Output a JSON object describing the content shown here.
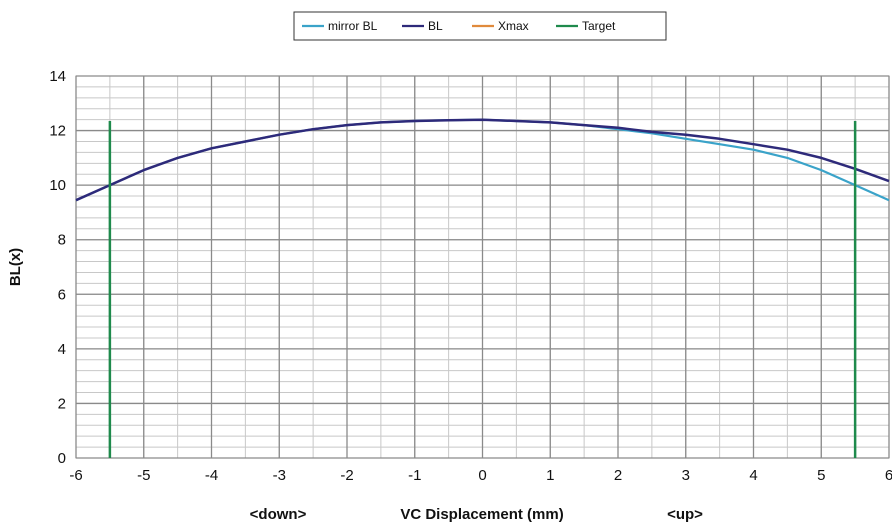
{
  "chart_data": {
    "type": "line",
    "title": "",
    "xlabel": "VC Displacement (mm)",
    "xlabel_left_note": "<down>",
    "xlabel_right_note": "<up>",
    "ylabel": "BL(x)",
    "xlim": [
      -6,
      6
    ],
    "ylim": [
      0,
      14
    ],
    "x_ticks": [
      -6,
      -5,
      -4,
      -3,
      -2,
      -1,
      0,
      1,
      2,
      3,
      4,
      5,
      6
    ],
    "y_ticks": [
      0,
      2,
      4,
      6,
      8,
      10,
      12,
      14
    ],
    "grid": true,
    "legend_position": "top",
    "legend": [
      "mirror BL",
      "BL",
      "Xmax",
      "Target"
    ],
    "series": [
      {
        "name": "mirror BL",
        "color": "#3aa3c9",
        "x": [
          -6,
          -5.5,
          -5,
          -4.5,
          -4,
          -3.5,
          -3,
          -2.5,
          -2,
          -1.5,
          -1,
          -0.5,
          0,
          0.5,
          1,
          1.5,
          2,
          2.5,
          3,
          3.5,
          4,
          4.5,
          5,
          5.5,
          6
        ],
        "y": [
          9.45,
          10.0,
          10.55,
          11.0,
          11.35,
          11.6,
          11.85,
          12.05,
          12.2,
          12.3,
          12.35,
          12.38,
          12.4,
          12.35,
          12.3,
          12.2,
          12.05,
          11.9,
          11.7,
          11.5,
          11.3,
          11.0,
          10.55,
          10.0,
          9.45
        ]
      },
      {
        "name": "BL",
        "color": "#2e2a7a",
        "x": [
          -6,
          -5.5,
          -5,
          -4.5,
          -4,
          -3.5,
          -3,
          -2.5,
          -2,
          -1.5,
          -1,
          -0.5,
          0,
          0.5,
          1,
          1.5,
          2,
          2.5,
          3,
          3.5,
          4,
          4.5,
          5,
          5.5,
          6
        ],
        "y": [
          9.45,
          10.0,
          10.55,
          11.0,
          11.35,
          11.6,
          11.85,
          12.05,
          12.2,
          12.3,
          12.35,
          12.38,
          12.4,
          12.35,
          12.3,
          12.2,
          12.1,
          11.95,
          11.85,
          11.7,
          11.5,
          11.3,
          11.0,
          10.6,
          10.15
        ]
      },
      {
        "name": "Xmax",
        "color": "#e08a3c",
        "x": [],
        "y": []
      },
      {
        "name": "Target",
        "color": "#1f8a4c",
        "segments": [
          {
            "x": -5.5,
            "y": [
              0,
              12.35
            ]
          },
          {
            "x": 5.5,
            "y": [
              0,
              12.35
            ]
          }
        ]
      }
    ]
  }
}
